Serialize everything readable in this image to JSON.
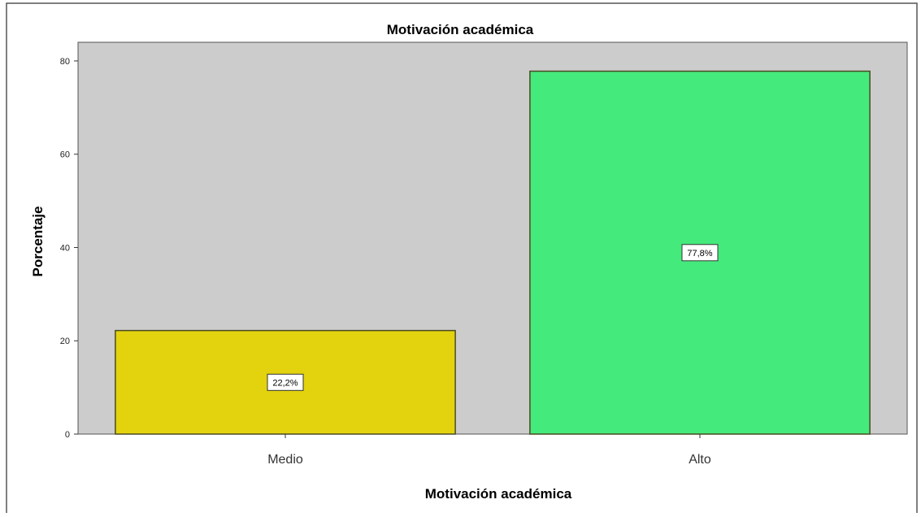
{
  "chart_data": {
    "type": "bar",
    "title": "Motivación académica",
    "xlabel": "Motivación académica",
    "ylabel": "Porcentaje",
    "categories": [
      "Medio",
      "Alto"
    ],
    "values": [
      22.2,
      77.8
    ],
    "data_labels": [
      "22,2%",
      "77,8%"
    ],
    "ylim": [
      0,
      84
    ],
    "yticks": [
      0,
      20,
      40,
      60,
      80
    ],
    "grid": false,
    "colors": {
      "plot_background": "#cccccc",
      "bars": [
        "#e2d30e",
        "#45ea7c"
      ],
      "bar_outline": "#4a4a20"
    }
  }
}
